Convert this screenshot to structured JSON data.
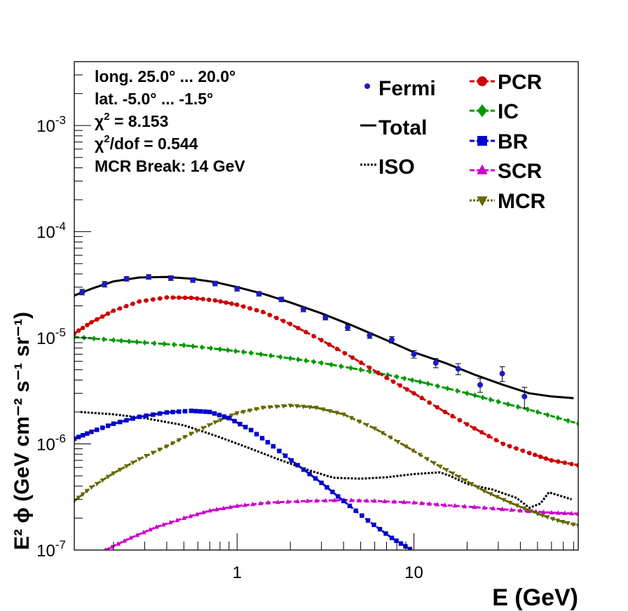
{
  "chart_data": {
    "type": "line",
    "title": "",
    "xlabel": "E (GeV)",
    "ylabel": "E² ϕ (GeV cm⁻² s⁻¹ sr⁻¹)",
    "xscale": "log",
    "yscale": "log",
    "xlim": [
      0.12,
      85
    ],
    "ylim": [
      1e-07,
      0.004
    ],
    "x_tick_labels": [
      {
        "value": 1,
        "label": "1"
      },
      {
        "value": 10,
        "label": "10"
      }
    ],
    "y_tick_labels": [
      {
        "value": 1e-07,
        "base": "10",
        "exp": "-7"
      },
      {
        "value": 1e-06,
        "base": "10",
        "exp": "-6"
      },
      {
        "value": 1e-05,
        "base": "10",
        "exp": "-5"
      },
      {
        "value": 0.0001,
        "base": "10",
        "exp": "-4"
      },
      {
        "value": 0.001,
        "base": "10",
        "exp": "-3"
      }
    ],
    "grid": false,
    "info_lines": [
      {
        "text": "long. 25.0° ... 20.0°"
      },
      {
        "text": "lat. -5.0° ... -1.5°"
      },
      {
        "pre": "χ",
        "sup": "2",
        "post": " = 8.153"
      },
      {
        "pre": "χ",
        "sup": "2",
        "post": "/dof = 0.544"
      },
      {
        "text": "MCR Break: 14 GeV"
      }
    ],
    "legend_left": [
      "Fermi",
      "Total",
      "ISO"
    ],
    "legend_right": [
      "PCR",
      "IC",
      "BR",
      "SCR",
      "MCR"
    ],
    "colors": {
      "Fermi": "#1a1acc",
      "Total": "#000000",
      "ISO": "#000000",
      "PCR": "#cc0000",
      "IC": "#009900",
      "BR": "#0000cc",
      "SCR": "#cc00cc",
      "MCR": "#666600"
    },
    "fermi_points": [
      {
        "x": 0.133,
        "y": 2.7e-05,
        "err": 0.06
      },
      {
        "x": 0.178,
        "y": 3.2e-05,
        "err": 0.06
      },
      {
        "x": 0.237,
        "y": 3.6e-05,
        "err": 0.05
      },
      {
        "x": 0.316,
        "y": 3.75e-05,
        "err": 0.05
      },
      {
        "x": 0.422,
        "y": 3.65e-05,
        "err": 0.05
      },
      {
        "x": 0.562,
        "y": 3.5e-05,
        "err": 0.05
      },
      {
        "x": 0.75,
        "y": 3.25e-05,
        "err": 0.05
      },
      {
        "x": 1.0,
        "y": 2.9e-05,
        "err": 0.05
      },
      {
        "x": 1.33,
        "y": 2.6e-05,
        "err": 0.05
      },
      {
        "x": 1.78,
        "y": 2.3e-05,
        "err": 0.05
      },
      {
        "x": 2.37,
        "y": 1.85e-05,
        "err": 0.05
      },
      {
        "x": 3.16,
        "y": 1.55e-05,
        "err": 0.05
      },
      {
        "x": 4.22,
        "y": 1.25e-05,
        "err": 0.06
      },
      {
        "x": 5.62,
        "y": 1.05e-05,
        "err": 0.06
      },
      {
        "x": 7.5,
        "y": 9.6e-06,
        "err": 0.07
      },
      {
        "x": 10.0,
        "y": 7e-06,
        "err": 0.08
      },
      {
        "x": 13.3,
        "y": 5.8e-06,
        "err": 0.1
      },
      {
        "x": 17.8,
        "y": 5.1e-06,
        "err": 0.12
      },
      {
        "x": 23.7,
        "y": 3.6e-06,
        "err": 0.15
      },
      {
        "x": 31.6,
        "y": 4.6e-06,
        "err": 0.16
      },
      {
        "x": 42.2,
        "y": 2.8e-06,
        "err": 0.22
      }
    ],
    "series": [
      {
        "name": "Total",
        "style": "solid",
        "marker": "none",
        "points": [
          [
            0.12,
            2.5e-05
          ],
          [
            0.15,
            2.9e-05
          ],
          [
            0.2,
            3.4e-05
          ],
          [
            0.28,
            3.7e-05
          ],
          [
            0.4,
            3.75e-05
          ],
          [
            0.55,
            3.6e-05
          ],
          [
            0.75,
            3.35e-05
          ],
          [
            1.0,
            3e-05
          ],
          [
            1.4,
            2.6e-05
          ],
          [
            2.0,
            2.15e-05
          ],
          [
            3.0,
            1.7e-05
          ],
          [
            4.5,
            1.3e-05
          ],
          [
            7.0,
            9.5e-06
          ],
          [
            10.0,
            7.3e-06
          ],
          [
            15.0,
            5.8e-06
          ],
          [
            22.0,
            4.5e-06
          ],
          [
            32.0,
            3.6e-06
          ],
          [
            45.0,
            3e-06
          ],
          [
            60.0,
            2.8e-06
          ],
          [
            80.0,
            2.7e-06
          ]
        ]
      },
      {
        "name": "ISO",
        "style": "dotted",
        "marker": "none",
        "points": [
          [
            0.13,
            2e-06
          ],
          [
            0.2,
            1.9e-06
          ],
          [
            0.3,
            1.75e-06
          ],
          [
            0.5,
            1.5e-06
          ],
          [
            0.75,
            1.2e-06
          ],
          [
            1.1,
            9.5e-07
          ],
          [
            1.7,
            7.2e-07
          ],
          [
            2.5,
            5.7e-07
          ],
          [
            3.5,
            4.8e-07
          ],
          [
            5.0,
            4.7e-07
          ],
          [
            7.0,
            4.85e-07
          ],
          [
            10.0,
            5.2e-07
          ],
          [
            14.0,
            5.4e-07
          ],
          [
            16.0,
            5e-07
          ],
          [
            20.0,
            4.2e-07
          ],
          [
            28.0,
            3.7e-07
          ],
          [
            38.0,
            3.1e-07
          ],
          [
            45.0,
            2.5e-07
          ],
          [
            52.0,
            2.75e-07
          ],
          [
            58.0,
            3.5e-07
          ],
          [
            65.0,
            3.3e-07
          ],
          [
            78.0,
            3e-07
          ]
        ]
      },
      {
        "name": "PCR",
        "style": "dashed",
        "marker": "circle",
        "points": [
          [
            0.12,
            1.1e-05
          ],
          [
            0.15,
            1.4e-05
          ],
          [
            0.2,
            1.8e-05
          ],
          [
            0.28,
            2.2e-05
          ],
          [
            0.4,
            2.4e-05
          ],
          [
            0.55,
            2.38e-05
          ],
          [
            0.75,
            2.25e-05
          ],
          [
            1.0,
            2.05e-05
          ],
          [
            1.4,
            1.75e-05
          ],
          [
            2.0,
            1.35e-05
          ],
          [
            3.0,
            9.5e-06
          ],
          [
            4.5,
            6.5e-06
          ],
          [
            7.0,
            4.2e-06
          ],
          [
            10.0,
            3e-06
          ],
          [
            15.0,
            2e-06
          ],
          [
            22.0,
            1.4e-06
          ],
          [
            32.0,
            1e-06
          ],
          [
            45.0,
            8.2e-07
          ],
          [
            60.0,
            7e-07
          ],
          [
            85.0,
            6.3e-07
          ]
        ]
      },
      {
        "name": "IC",
        "style": "dashed",
        "marker": "diamond",
        "points": [
          [
            0.12,
            1.02e-05
          ],
          [
            0.2,
            9.5e-06
          ],
          [
            0.3,
            9e-06
          ],
          [
            0.5,
            8.5e-06
          ],
          [
            0.8,
            7.8e-06
          ],
          [
            1.2,
            7.2e-06
          ],
          [
            2.0,
            6.4e-06
          ],
          [
            3.0,
            5.8e-06
          ],
          [
            5.0,
            5e-06
          ],
          [
            8.0,
            4.3e-06
          ],
          [
            12.0,
            3.7e-06
          ],
          [
            20.0,
            3e-06
          ],
          [
            30.0,
            2.5e-06
          ],
          [
            50.0,
            2e-06
          ],
          [
            85.0,
            1.55e-06
          ]
        ]
      },
      {
        "name": "BR",
        "style": "dashed",
        "marker": "square",
        "points": [
          [
            0.12,
            1.12e-06
          ],
          [
            0.15,
            1.3e-06
          ],
          [
            0.2,
            1.55e-06
          ],
          [
            0.28,
            1.8e-06
          ],
          [
            0.4,
            1.98e-06
          ],
          [
            0.55,
            2.05e-06
          ],
          [
            0.7,
            2e-06
          ],
          [
            0.9,
            1.75e-06
          ],
          [
            1.2,
            1.35e-06
          ],
          [
            1.6,
            9.5e-07
          ],
          [
            2.2,
            6.3e-07
          ],
          [
            3.0,
            4.3e-07
          ],
          [
            4.0,
            2.9e-07
          ],
          [
            5.5,
            1.9e-07
          ],
          [
            7.5,
            1.3e-07
          ],
          [
            9.5,
            1.02e-07
          ]
        ]
      },
      {
        "name": "SCR",
        "style": "dashed",
        "marker": "triangle-up",
        "points": [
          [
            0.18,
            1e-07
          ],
          [
            0.25,
            1.3e-07
          ],
          [
            0.35,
            1.65e-07
          ],
          [
            0.5,
            2e-07
          ],
          [
            0.7,
            2.35e-07
          ],
          [
            1.0,
            2.6e-07
          ],
          [
            1.5,
            2.8e-07
          ],
          [
            2.5,
            2.9e-07
          ],
          [
            4.0,
            2.95e-07
          ],
          [
            6.0,
            2.9e-07
          ],
          [
            10.0,
            2.8e-07
          ],
          [
            15.0,
            2.65e-07
          ],
          [
            25.0,
            2.5e-07
          ],
          [
            40.0,
            2.35e-07
          ],
          [
            60.0,
            2.25e-07
          ],
          [
            85.0,
            2.2e-07
          ]
        ]
      },
      {
        "name": "MCR",
        "style": "dashed",
        "marker": "triangle-down",
        "points": [
          [
            0.12,
            2.9e-07
          ],
          [
            0.15,
            3.9e-07
          ],
          [
            0.2,
            5.3e-07
          ],
          [
            0.28,
            7.2e-07
          ],
          [
            0.4,
            9.5e-07
          ],
          [
            0.55,
            1.25e-06
          ],
          [
            0.75,
            1.6e-06
          ],
          [
            1.0,
            1.95e-06
          ],
          [
            1.4,
            2.2e-06
          ],
          [
            2.0,
            2.3e-06
          ],
          [
            2.8,
            2.2e-06
          ],
          [
            4.0,
            1.9e-06
          ],
          [
            6.0,
            1.4e-06
          ],
          [
            9.0,
            9.5e-07
          ],
          [
            13.0,
            6.6e-07
          ],
          [
            18.0,
            4.9e-07
          ],
          [
            25.0,
            3.6e-07
          ],
          [
            35.0,
            2.8e-07
          ],
          [
            50.0,
            2.2e-07
          ],
          [
            65.0,
            1.9e-07
          ],
          [
            85.0,
            1.7e-07
          ]
        ]
      }
    ]
  }
}
